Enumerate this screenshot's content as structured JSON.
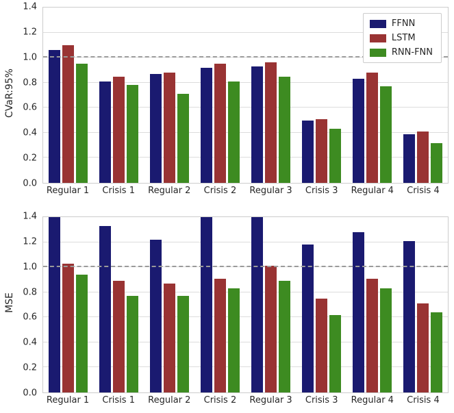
{
  "colors": {
    "ffnn": "#1a1a70",
    "lstm": "#993333",
    "rnn_fnn": "#3d8b21",
    "reference_line": "#9a9a9a",
    "grid": "#dcdcdc"
  },
  "legend": {
    "entries": [
      "FFNN",
      "LSTM",
      "RNN-FNN"
    ]
  },
  "chart_data": [
    {
      "type": "bar",
      "ylabel": "CVaR:95%",
      "xlabel": "",
      "title": "",
      "ylim": [
        0,
        1.4
      ],
      "yticks": [
        "0.0",
        "0.2",
        "0.4",
        "0.6",
        "0.8",
        "1.0",
        "1.2",
        "1.4"
      ],
      "reference_line": 1.0,
      "grid": true,
      "legend_position": "upper right",
      "categories": [
        "Regular 1",
        "Crisis 1",
        "Regular 2",
        "Crisis 2",
        "Regular 3",
        "Crisis 3",
        "Regular 4",
        "Crisis 4"
      ],
      "series": [
        {
          "name": "FFNN",
          "color": "#1a1a70",
          "values": [
            1.06,
            0.81,
            0.87,
            0.92,
            0.93,
            0.5,
            0.83,
            0.39
          ]
        },
        {
          "name": "LSTM",
          "color": "#993333",
          "values": [
            1.1,
            0.85,
            0.88,
            0.95,
            0.96,
            0.51,
            0.88,
            0.41
          ]
        },
        {
          "name": "RNN-FNN",
          "color": "#3d8b21",
          "values": [
            0.95,
            0.78,
            0.71,
            0.81,
            0.85,
            0.43,
            0.77,
            0.32
          ]
        }
      ]
    },
    {
      "type": "bar",
      "ylabel": "MSE",
      "xlabel": "",
      "title": "",
      "ylim": [
        0,
        1.4
      ],
      "yticks": [
        "0.0",
        "0.2",
        "0.4",
        "0.6",
        "0.8",
        "1.0",
        "1.2",
        "1.4"
      ],
      "reference_line": 1.0,
      "grid": true,
      "legend_position": "none",
      "categories": [
        "Regular 1",
        "Crisis 1",
        "Regular 2",
        "Crisis 2",
        "Regular 3",
        "Crisis 3",
        "Regular 4",
        "Crisis 4"
      ],
      "series": [
        {
          "name": "FFNN",
          "color": "#1a1a70",
          "values": [
            1.4,
            1.33,
            1.22,
            1.4,
            1.4,
            1.18,
            1.28,
            1.21
          ]
        },
        {
          "name": "LSTM",
          "color": "#993333",
          "values": [
            1.03,
            0.89,
            0.87,
            0.91,
            1.01,
            0.75,
            0.91,
            0.71
          ]
        },
        {
          "name": "RNN-FNN",
          "color": "#3d8b21",
          "values": [
            0.94,
            0.77,
            0.77,
            0.83,
            0.89,
            0.62,
            0.83,
            0.64
          ]
        }
      ]
    }
  ]
}
